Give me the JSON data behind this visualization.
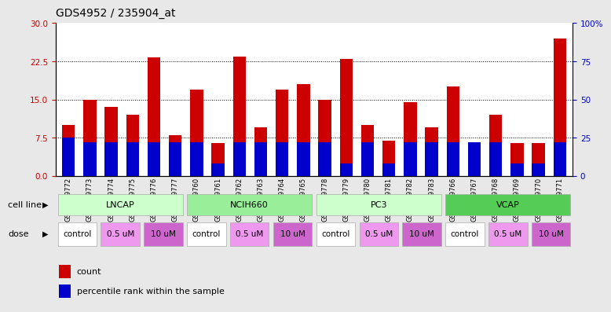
{
  "title": "GDS4952 / 235904_at",
  "samples": [
    "GSM1359772",
    "GSM1359773",
    "GSM1359774",
    "GSM1359775",
    "GSM1359776",
    "GSM1359777",
    "GSM1359760",
    "GSM1359761",
    "GSM1359762",
    "GSM1359763",
    "GSM1359764",
    "GSM1359765",
    "GSM1359778",
    "GSM1359779",
    "GSM1359780",
    "GSM1359781",
    "GSM1359782",
    "GSM1359783",
    "GSM1359766",
    "GSM1359767",
    "GSM1359768",
    "GSM1359769",
    "GSM1359770",
    "GSM1359771"
  ],
  "counts": [
    10.0,
    15.0,
    13.5,
    12.0,
    23.2,
    8.0,
    17.0,
    6.5,
    23.5,
    9.5,
    17.0,
    18.0,
    15.0,
    23.0,
    10.0,
    7.0,
    14.5,
    9.5,
    17.5,
    6.5,
    12.0,
    6.5,
    6.5,
    27.0
  ],
  "percentile_ranks": [
    25,
    22,
    22,
    22,
    22,
    22,
    22,
    8,
    22,
    22,
    22,
    22,
    22,
    8,
    22,
    8,
    22,
    22,
    22,
    22,
    22,
    8,
    8,
    22
  ],
  "cell_lines": [
    "LNCAP",
    "NCIH660",
    "PC3",
    "VCAP"
  ],
  "cell_line_spans": [
    [
      0,
      5
    ],
    [
      6,
      11
    ],
    [
      12,
      17
    ],
    [
      18,
      23
    ]
  ],
  "dose_groups": [
    [
      "control",
      [
        0,
        1
      ]
    ],
    [
      "0.5 uM",
      [
        2,
        3
      ]
    ],
    [
      "10 uM",
      [
        4,
        5
      ]
    ],
    [
      "control",
      [
        6,
        7
      ]
    ],
    [
      "0.5 uM",
      [
        8,
        9
      ]
    ],
    [
      "10 uM",
      [
        10,
        11
      ]
    ],
    [
      "control",
      [
        12,
        13
      ]
    ],
    [
      "0.5 uM",
      [
        14,
        15
      ]
    ],
    [
      "10 uM",
      [
        16,
        17
      ]
    ],
    [
      "control",
      [
        18,
        19
      ]
    ],
    [
      "0.5 uM",
      [
        20,
        21
      ]
    ],
    [
      "10 uM",
      [
        22,
        23
      ]
    ]
  ],
  "ylim_left": [
    0,
    30
  ],
  "ylim_right": [
    0,
    100
  ],
  "yticks_left": [
    0,
    7.5,
    15,
    22.5,
    30
  ],
  "yticks_right": [
    0,
    25,
    50,
    75,
    100
  ],
  "bar_color": "#cc0000",
  "percentile_color": "#0000cc",
  "cell_line_colors": {
    "LNCAP": "#ccffcc",
    "NCIH660": "#99ee99",
    "PC3": "#ccffcc",
    "VCAP": "#55cc55"
  },
  "dose_colors": {
    "control": "#ffffff",
    "0.5 uM": "#ee99ee",
    "10 uM": "#cc66cc"
  },
  "bg_color": "#e8e8e8",
  "plot_bg": "#ffffff",
  "axis_color_left": "#cc0000",
  "axis_color_right": "#0000cc",
  "title_fontsize": 10
}
